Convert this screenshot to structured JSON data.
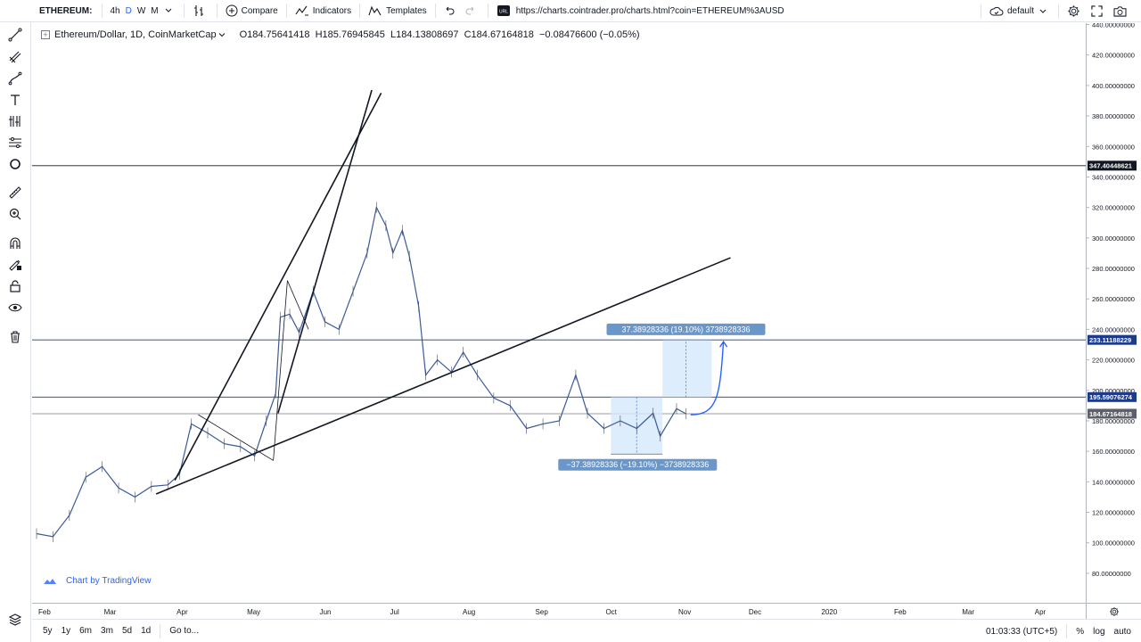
{
  "topbar": {
    "symbol": "ETHEREUM:",
    "intervals": [
      "4h",
      "D",
      "W",
      "M"
    ],
    "active_interval": "D",
    "compare_label": "Compare",
    "indicators_label": "Indicators",
    "templates_label": "Templates",
    "url": "https://charts.cointrader.pro/charts.html?coin=ETHEREUM%3AUSD",
    "layout_label": "default"
  },
  "legend": {
    "title": "Ethereum/Dollar, 1D, CoinMarketCap",
    "ohlc": "O184.75641418  H185.76945845  L184.13808697  C184.67164818  −0.08476600 (−0.05%)"
  },
  "watermark": {
    "label": "Chart by TradingView"
  },
  "price_axis": {
    "ticks": [
      440,
      420,
      400,
      380,
      360,
      340,
      320,
      300,
      280,
      260,
      240,
      220,
      200,
      180,
      160,
      140,
      120,
      100,
      80
    ],
    "tick_labels": [
      "440.00000000",
      "420.00000000",
      "400.00000000",
      "380.00000000",
      "360.00000000",
      "340.00000000",
      "320.00000000",
      "300.00000000",
      "280.00000000",
      "260.00000000",
      "240.00000000",
      "220.00000000",
      "200.00000000",
      "180.00000000",
      "160.00000000",
      "140.00000000",
      "120.00000000",
      "100.00000000",
      "80.00000000"
    ],
    "badges": [
      {
        "label": "347.40448621",
        "value": 347.40448621,
        "color": "#131722"
      },
      {
        "label": "233.11188229",
        "value": 233.11188229,
        "color": "#1e3a8a"
      },
      {
        "label": "195.59076274",
        "value": 195.59076274,
        "color": "#1e3a8a"
      },
      {
        "label": "184.67164818",
        "value": 184.67164818,
        "color": "#5d606b"
      }
    ]
  },
  "time_axis": {
    "labels": [
      "Feb",
      "Mar",
      "Apr",
      "May",
      "Jun",
      "Jul",
      "Aug",
      "Sep",
      "Oct",
      "Nov",
      "Dec",
      "2020",
      "Feb",
      "Mar",
      "Apr"
    ]
  },
  "measurements": {
    "down_label": "−37.38928336 (−19.10%) −3738928336",
    "up_label": "37.38928336 (19.10%) 3738928336"
  },
  "bottombar": {
    "ranges": [
      "5y",
      "1y",
      "6m",
      "3m",
      "5d",
      "1d"
    ],
    "goto_label": "Go to...",
    "clock": "01:03:33 (UTC+5)",
    "percent_label": "%",
    "log_label": "log",
    "auto_label": "auto"
  },
  "colors": {
    "price_line": "#3c5a99",
    "measure_fill": "#d6e8fb",
    "measure_label": "#6b96c8",
    "accent": "#2962ff"
  },
  "chart_data": {
    "type": "line",
    "title": "Ethereum/Dollar, 1D, CoinMarketCap",
    "xlabel": "",
    "ylabel": "",
    "ylim": [
      70,
      445
    ],
    "x": [
      "2019-02-01",
      "2019-02-08",
      "2019-02-15",
      "2019-02-22",
      "2019-03-01",
      "2019-03-08",
      "2019-03-15",
      "2019-03-22",
      "2019-03-29",
      "2019-04-03",
      "2019-04-08",
      "2019-04-15",
      "2019-04-22",
      "2019-04-29",
      "2019-05-05",
      "2019-05-10",
      "2019-05-14",
      "2019-05-16",
      "2019-05-20",
      "2019-05-24",
      "2019-05-30",
      "2019-06-04",
      "2019-06-10",
      "2019-06-16",
      "2019-06-22",
      "2019-06-26",
      "2019-06-30",
      "2019-07-03",
      "2019-07-07",
      "2019-07-10",
      "2019-07-14",
      "2019-07-17",
      "2019-07-22",
      "2019-07-28",
      "2019-08-02",
      "2019-08-08",
      "2019-08-15",
      "2019-08-22",
      "2019-08-29",
      "2019-09-05",
      "2019-09-12",
      "2019-09-19",
      "2019-09-24",
      "2019-10-01",
      "2019-10-08",
      "2019-10-15",
      "2019-10-22",
      "2019-10-25",
      "2019-11-01",
      "2019-11-05"
    ],
    "series": [
      {
        "values": [
          106,
          104,
          118,
          143,
          150,
          136,
          130,
          137,
          138,
          145,
          178,
          172,
          165,
          163,
          157,
          180,
          198,
          248,
          250,
          238,
          265,
          245,
          240,
          265,
          290,
          320,
          308,
          290,
          305,
          288,
          255,
          210,
          220,
          212,
          225,
          210,
          195,
          190,
          175,
          178,
          180,
          210,
          185,
          175,
          180,
          175,
          185,
          170,
          188,
          184.67
        ]
      }
    ],
    "horizontal_levels": [
      347.40448621,
      233.11188229,
      195.59076274,
      184.67164818
    ],
    "measurements": [
      {
        "label": "−37.38928336 (−19.10%) −3738928336",
        "from": 195.59,
        "to": 158.2
      },
      {
        "label": "37.38928336 (19.10%) 3738928336",
        "from": 195.59,
        "to": 232.98
      }
    ],
    "grid": false,
    "legend": "none"
  }
}
